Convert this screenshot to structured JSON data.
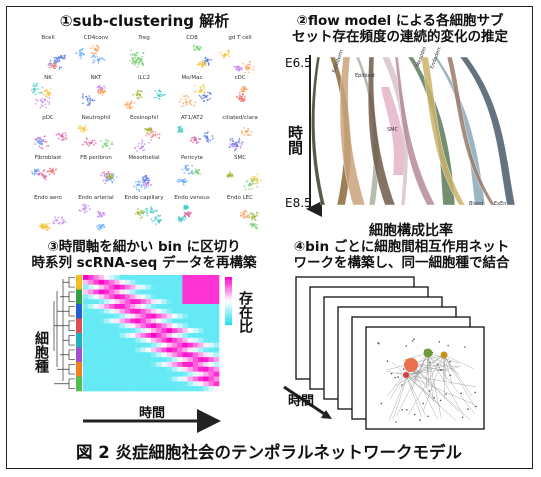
{
  "panel1": {
    "title": "①sub-clustering 解析",
    "cells": [
      "Bcell",
      "CD4conv",
      "Treg",
      "CD8",
      "gd T cell",
      "NK",
      "NKT",
      "ILC2",
      "Mo/Mac",
      "cDC",
      "pDC",
      "Neutrophil",
      "Eosinophil",
      "AT1/AT2",
      "ciliated/clara",
      "Fibroblast",
      "FB peribron",
      "Mesothelial",
      "Pericyte",
      "SMC",
      "Endo aero",
      "Endo arterial",
      "Endo capillary",
      "Endo venous",
      "Endo LEC"
    ]
  },
  "panel2": {
    "title_line1": "②flow model による各細胞サブ",
    "title_line2": "セット存在頻度の連続的変化の推定",
    "y_top": "E6.5",
    "y_bottom": "E8.5",
    "y_axis_label": "時間",
    "x_axis_label": "細胞構成比率",
    "stream_labels": [
      "Ectoderm",
      "Epiblast",
      "Mesoderm",
      "Endoderm",
      "Blood",
      "ExEn",
      "SMC"
    ]
  },
  "panel3": {
    "title_line1": "③時間軸を細かい bin に区切り",
    "title_line2": "時系列 scRNA-seq データを再構築",
    "y_label": "細胞種",
    "x_label": "時間",
    "legend_label": "存在比"
  },
  "panel4": {
    "title_line1": "④bin ごとに細胞間相互作用ネット",
    "title_line2": "ワークを構築し、同一細胞種で結合",
    "x_label": "時間"
  },
  "caption": "図 2 炎症細胞社会のテンポラルネットワークモデル",
  "colors": {
    "heat_low": "#22e0f0",
    "heat_high": "#ff00c8",
    "border": "#222222"
  }
}
